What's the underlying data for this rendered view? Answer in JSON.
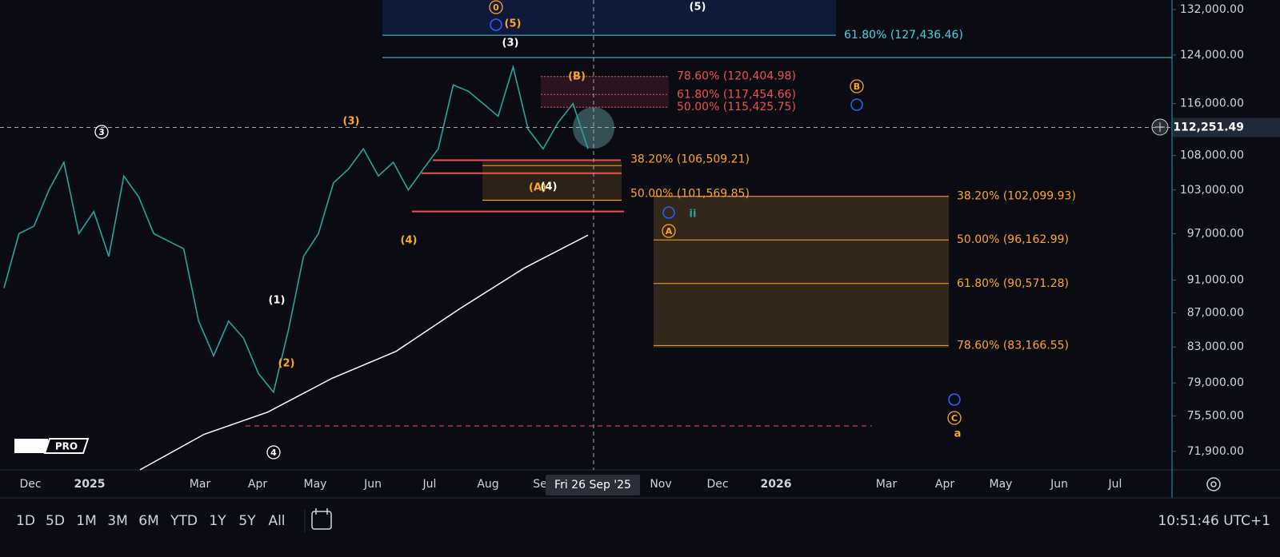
{
  "chart_data": {
    "type": "candlestick-screenshot",
    "ylim": [
      70090,
      133760
    ],
    "log_scale": true,
    "yticks": [
      {
        "value": 132000,
        "label": "132,000.00"
      },
      {
        "value": 124000,
        "label": "124,000.00"
      },
      {
        "value": 116000,
        "label": "116,000.00"
      },
      {
        "value": 108000,
        "label": "108,000.00"
      },
      {
        "value": 103000,
        "label": "103,000.00"
      },
      {
        "value": 97000,
        "label": "97,000.00"
      },
      {
        "value": 91000,
        "label": "91,000.00"
      },
      {
        "value": 87000,
        "label": "87,000.00"
      },
      {
        "value": 83000,
        "label": "83,000.00"
      },
      {
        "value": 79000,
        "label": "79,000.00"
      },
      {
        "value": 75500,
        "label": "75,500.00"
      },
      {
        "value": 71900,
        "label": "71,900.00"
      }
    ],
    "x_labels": [
      "Dec",
      "2025",
      "Mar",
      "Apr",
      "May",
      "Jun",
      "Jul",
      "Aug",
      "Se",
      "Nov",
      "Dec",
      "2026",
      "Mar",
      "Apr",
      "May",
      "Jun",
      "Jul"
    ],
    "crosshair_date": "Fri 26 Sep '25",
    "current_price": {
      "value": 112251.49,
      "label": "112,251.49"
    },
    "price": {
      "color": "#26a69a",
      "values": [
        90000,
        97000,
        98000,
        103000,
        107000,
        97000,
        100000,
        94000,
        105000,
        102000,
        97000,
        96000,
        95000,
        86000,
        82000,
        86000,
        84000,
        80000,
        78000,
        85000,
        94000,
        97000,
        104000,
        106000,
        109000,
        105000,
        107000,
        103000,
        106000,
        109000,
        119000,
        118000,
        116000,
        114000,
        122000,
        112000,
        109000,
        113000,
        116000,
        109000
      ]
    },
    "moving_average": {
      "color": "#ffffff",
      "values": [
        70100,
        73600,
        75900,
        79500,
        82500,
        87500,
        92500,
        96800
      ]
    },
    "fib_levels": [
      {
        "label": "61.80% (127,436.46)",
        "price": 127436.46,
        "color": "#4dd0e1"
      },
      {
        "label": "78.60% (120,404.98)",
        "price": 120404.98,
        "color": "#ef5350"
      },
      {
        "label": "61.80% (117,454.66)",
        "price": 117454.66,
        "color": "#ef5350"
      },
      {
        "label": "50.00% (115,425.75)",
        "price": 115425.75,
        "color": "#ef5350"
      },
      {
        "label": "38.20% (106,509.21)",
        "price": 106509.21,
        "color": "#ffa726"
      },
      {
        "label": "50.00% (101,569.85)",
        "price": 101569.85,
        "color": "#ffa726"
      },
      {
        "label": "38.20% (102,099.93)",
        "price": 102099.93,
        "color": "#ffa726"
      },
      {
        "label": "50.00% (96,162.99)",
        "price": 96162.99,
        "color": "#ffa726"
      },
      {
        "label": "61.80% (90,571.28)",
        "price": 90571.28,
        "color": "#ffa726"
      },
      {
        "label": "78.60% (83,166.55)",
        "price": 83166.55,
        "color": "#ffa726"
      }
    ],
    "support_lines": [
      107300,
      105400,
      100000
    ],
    "annotations": [
      {
        "text": "0",
        "color": "#ffa726",
        "circled": true
      },
      {
        "text": "(5)",
        "color": "#ffa726",
        "circled": false
      },
      {
        "text": "(5)",
        "color": "#ffffff",
        "circled": false
      },
      {
        "text": "(3)",
        "color": "#ffffff",
        "circled": false
      },
      {
        "text": "(B)",
        "color": "#ffa726",
        "circled": false
      },
      {
        "text": "(3)",
        "color": "#ffa726",
        "circled": false
      },
      {
        "text": "3",
        "color": "#ffffff",
        "circled": true
      },
      {
        "text": "(4)",
        "color": "#ffa726",
        "circled": false
      },
      {
        "text": "(A)",
        "color": "#ffa726",
        "circled": false
      },
      {
        "text": "(4)",
        "color": "#ffffff",
        "circled": false
      },
      {
        "text": "(1)",
        "color": "#ffffff",
        "circled": false
      },
      {
        "text": "(2)",
        "color": "#ffa726",
        "circled": false
      },
      {
        "text": "4",
        "color": "#ffffff",
        "circled": true
      },
      {
        "text": "B",
        "color": "#ffa726",
        "circled": true
      },
      {
        "text": "A",
        "color": "#ffa726",
        "circled": true
      },
      {
        "text": "C",
        "color": "#ffa726",
        "circled": true
      },
      {
        "text": "a",
        "color": "#ffa726",
        "circled": false
      },
      {
        "text": "ii",
        "color": "#26a69a",
        "circled": false
      }
    ]
  },
  "logo": "PRO",
  "toolbar": {
    "ranges": [
      "1D",
      "5D",
      "1M",
      "3M",
      "6M",
      "YTD",
      "1Y",
      "5Y",
      "All"
    ],
    "clock": "10:51:46 UTC+1"
  }
}
